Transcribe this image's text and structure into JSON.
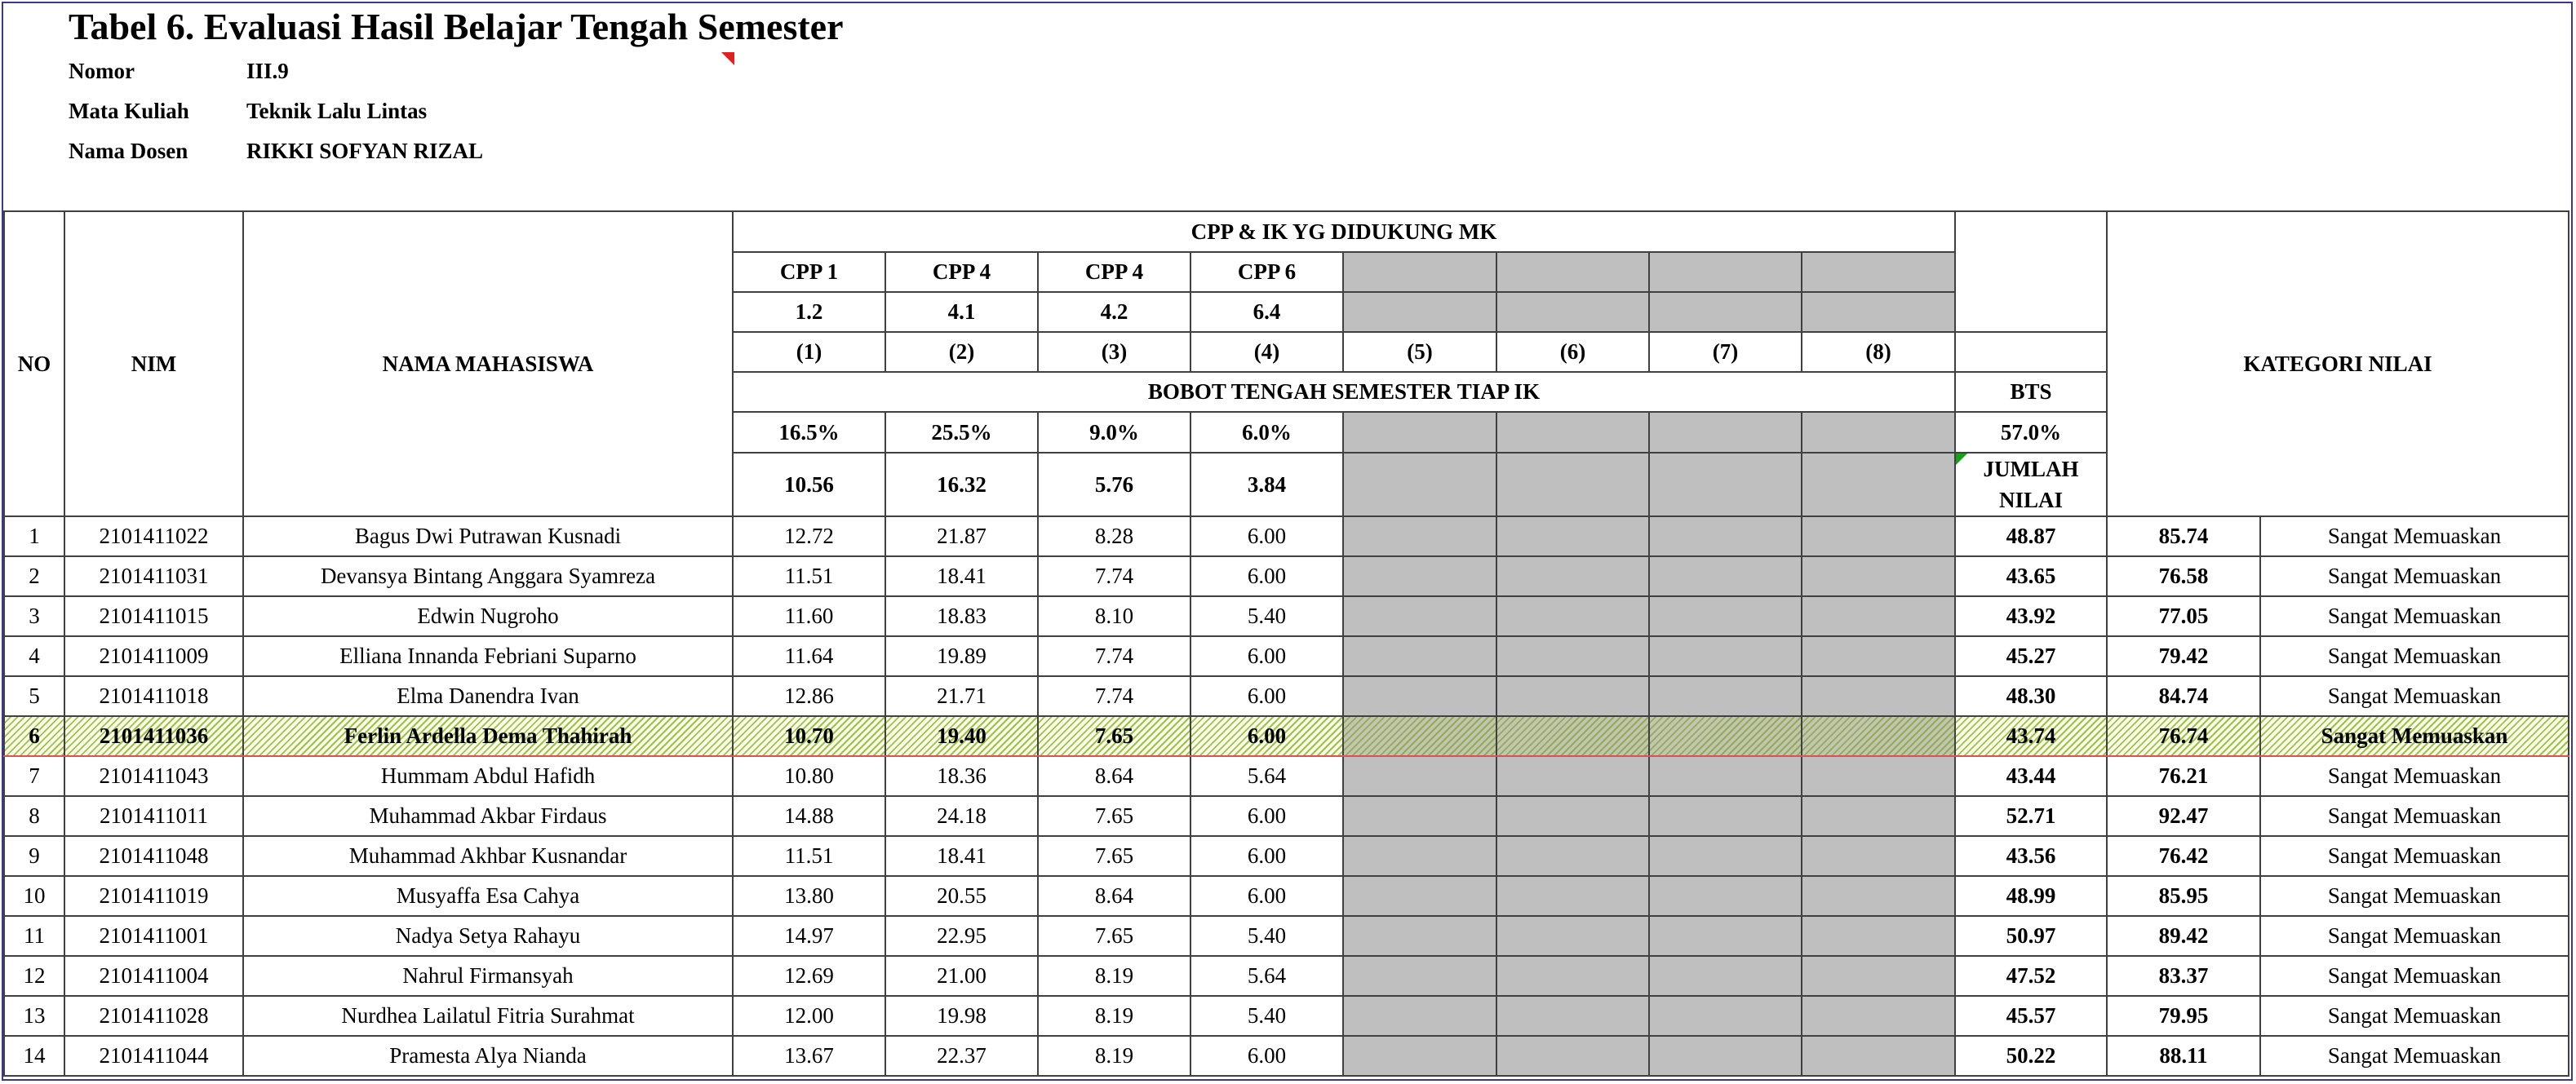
{
  "title": "Tabel 6. Evaluasi Hasil Belajar Tengah Semester",
  "meta": [
    {
      "label": "Nomor",
      "value": "III.9"
    },
    {
      "label": "Mata Kuliah",
      "value": "Teknik Lalu Lintas"
    },
    {
      "label": "Nama Dosen",
      "value": "RIKKI SOFYAN RIZAL"
    }
  ],
  "header": {
    "no": "NO",
    "nim": "NIM",
    "nama": "NAMA MAHASISWA",
    "cpp_group": "CPP & IK YG DIDUKUNG MK",
    "cpp_labels": [
      "CPP 1",
      "CPP 4",
      "CPP 4",
      "CPP 6"
    ],
    "ik_labels": [
      "1.2",
      "4.1",
      "4.2",
      "6.4"
    ],
    "col_numbers": [
      "(1)",
      "(2)",
      "(3)",
      "(4)",
      "(5)",
      "(6)",
      "(7)",
      "(8)"
    ],
    "bobot_group": "BOBOT TENGAH SEMESTER TIAP IK",
    "bobot_pct": [
      "16.5%",
      "25.5%",
      "9.0%",
      "6.0%"
    ],
    "bobot_max": [
      "10.56",
      "16.32",
      "5.76",
      "3.84"
    ],
    "bts": "BTS",
    "bts_pct": "57.0%",
    "jumlah_line1": "JUMLAH",
    "jumlah_line2": "NILAI",
    "kategori": "KATEGORI NILAI"
  },
  "rows": [
    {
      "no": "1",
      "nim": "2101411022",
      "nama": "Bagus Dwi Putrawan Kusnadi",
      "s": [
        "12.72",
        "21.87",
        "8.28",
        "6.00"
      ],
      "jumlah": "48.87",
      "nilai": "85.74",
      "kategori": "Sangat Memuaskan"
    },
    {
      "no": "2",
      "nim": "2101411031",
      "nama": "Devansya Bintang Anggara Syamreza",
      "s": [
        "11.51",
        "18.41",
        "7.74",
        "6.00"
      ],
      "jumlah": "43.65",
      "nilai": "76.58",
      "kategori": "Sangat Memuaskan"
    },
    {
      "no": "3",
      "nim": "2101411015",
      "nama": "Edwin Nugroho",
      "s": [
        "11.60",
        "18.83",
        "8.10",
        "5.40"
      ],
      "jumlah": "43.92",
      "nilai": "77.05",
      "kategori": "Sangat Memuaskan"
    },
    {
      "no": "4",
      "nim": "2101411009",
      "nama": "Elliana Innanda Febriani Suparno",
      "s": [
        "11.64",
        "19.89",
        "7.74",
        "6.00"
      ],
      "jumlah": "45.27",
      "nilai": "79.42",
      "kategori": "Sangat Memuaskan"
    },
    {
      "no": "5",
      "nim": "2101411018",
      "nama": "Elma Danendra Ivan",
      "s": [
        "12.86",
        "21.71",
        "7.74",
        "6.00"
      ],
      "jumlah": "48.30",
      "nilai": "84.74",
      "kategori": "Sangat Memuaskan"
    },
    {
      "no": "6",
      "nim": "2101411036",
      "nama": "Ferlin Ardella Dema Thahirah",
      "s": [
        "10.70",
        "19.40",
        "7.65",
        "6.00"
      ],
      "jumlah": "43.74",
      "nilai": "76.74",
      "kategori": "Sangat Memuaskan",
      "selected": true
    },
    {
      "no": "7",
      "nim": "2101411043",
      "nama": "Hummam Abdul Hafidh",
      "s": [
        "10.80",
        "18.36",
        "8.64",
        "5.64"
      ],
      "jumlah": "43.44",
      "nilai": "76.21",
      "kategori": "Sangat Memuaskan"
    },
    {
      "no": "8",
      "nim": "2101411011",
      "nama": "Muhammad Akbar Firdaus",
      "s": [
        "14.88",
        "24.18",
        "7.65",
        "6.00"
      ],
      "jumlah": "52.71",
      "nilai": "92.47",
      "kategori": "Sangat Memuaskan"
    },
    {
      "no": "9",
      "nim": "2101411048",
      "nama": "Muhammad Akhbar Kusnandar",
      "s": [
        "11.51",
        "18.41",
        "7.65",
        "6.00"
      ],
      "jumlah": "43.56",
      "nilai": "76.42",
      "kategori": "Sangat Memuaskan"
    },
    {
      "no": "10",
      "nim": "2101411019",
      "nama": "Musyaffa Esa Cahya",
      "s": [
        "13.80",
        "20.55",
        "8.64",
        "6.00"
      ],
      "jumlah": "48.99",
      "nilai": "85.95",
      "kategori": "Sangat Memuaskan"
    },
    {
      "no": "11",
      "nim": "2101411001",
      "nama": "Nadya Setya Rahayu",
      "s": [
        "14.97",
        "22.95",
        "7.65",
        "5.40"
      ],
      "jumlah": "50.97",
      "nilai": "89.42",
      "kategori": "Sangat Memuaskan"
    },
    {
      "no": "12",
      "nim": "2101411004",
      "nama": "Nahrul Firmansyah",
      "s": [
        "12.69",
        "21.00",
        "8.19",
        "5.64"
      ],
      "jumlah": "47.52",
      "nilai": "83.37",
      "kategori": "Sangat Memuaskan"
    },
    {
      "no": "13",
      "nim": "2101411028",
      "nama": "Nurdhea Lailatul Fitria Surahmat",
      "s": [
        "12.00",
        "19.98",
        "8.19",
        "5.40"
      ],
      "jumlah": "45.57",
      "nilai": "79.95",
      "kategori": "Sangat Memuaskan"
    },
    {
      "no": "14",
      "nim": "2101411044",
      "nama": "Pramesta Alya Nianda",
      "s": [
        "13.67",
        "22.37",
        "8.19",
        "6.00"
      ],
      "jumlah": "50.22",
      "nilai": "88.11",
      "kategori": "Sangat Memuaskan"
    }
  ],
  "colors": {
    "empty_cell": "#bfbfbf",
    "selection": "#e05050",
    "hatch": "#9bc24a",
    "comment_marker": "#e02020",
    "note_marker": "#18a018"
  }
}
